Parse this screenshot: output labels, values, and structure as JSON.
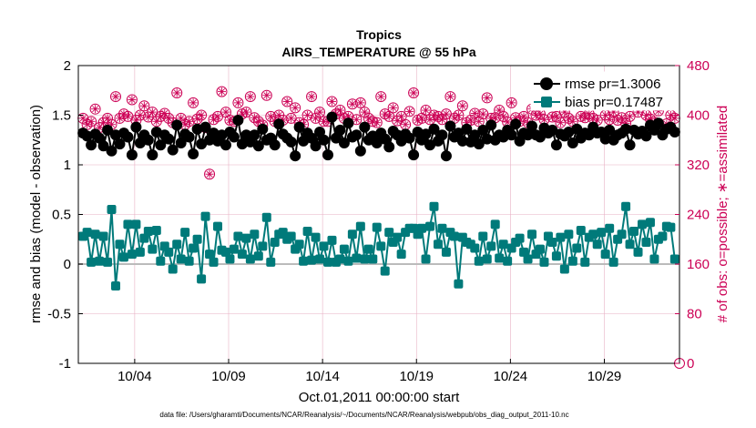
{
  "chart_data": {
    "type": "line",
    "title": "Tropics",
    "subtitle": "AIRS_TEMPERATURE @ 55 hPa",
    "xlabel": "Oct.01,2011 00:00:00 start",
    "ylabel": "rmse and bias (model - observation)",
    "y2label": "# of obs: o=possible; ∗=assimilated",
    "footnote": "data file: /Users/gharamti/Documents/NCAR/Reanalysis/~/Documents/NCAR/Reanalysis/webpub/obs_diag_output_2011-10.nc",
    "xlim": [
      1,
      33
    ],
    "ylim": [
      -1,
      2
    ],
    "y2lim": [
      0,
      480
    ],
    "x_ticks": [
      4,
      9,
      14,
      19,
      24,
      29
    ],
    "x_tick_labels": [
      "10/04",
      "10/09",
      "10/14",
      "10/19",
      "10/24",
      "10/29"
    ],
    "y_ticks": [
      "-1",
      "-0.5",
      "0",
      "0.5",
      "1",
      "1.5",
      "2"
    ],
    "y_tick_values": [
      -1,
      -0.5,
      0,
      0.5,
      1,
      1.5,
      2
    ],
    "y2_ticks": [
      "0",
      "80",
      "160",
      "240",
      "320",
      "400",
      "480"
    ],
    "y2_tick_values": [
      0,
      80,
      160,
      240,
      320,
      400,
      480
    ],
    "grid": true,
    "zero_line": 0,
    "legend_location": "top-right",
    "colors": {
      "rmse": "#000000",
      "bias": "#007a7a",
      "obs": "#cc0055",
      "grid": "#e8b0c4",
      "zero": "#bbbbbb"
    },
    "series": [
      {
        "name": "rmse",
        "legend": "rmse pr=1.3006",
        "values": [
          1.32,
          1.29,
          1.2,
          1.31,
          1.27,
          1.19,
          1.35,
          1.14,
          1.3,
          1.21,
          1.32,
          1.28,
          1.1,
          1.38,
          1.22,
          1.3,
          1.25,
          1.1,
          1.33,
          1.2,
          1.3,
          1.26,
          1.15,
          1.4,
          1.22,
          1.31,
          1.28,
          1.11,
          1.36,
          1.21,
          1.38,
          1.25,
          1.32,
          1.24,
          1.3,
          1.2,
          1.33,
          1.28,
          1.45,
          1.21,
          1.3,
          1.23,
          1.3,
          1.19,
          1.36,
          1.25,
          1.27,
          1.2,
          1.41,
          1.31,
          1.27,
          1.23,
          1.09,
          1.38,
          1.24,
          1.32,
          1.27,
          1.19,
          1.33,
          1.25,
          1.1,
          1.48,
          1.27,
          1.35,
          1.22,
          1.42,
          1.28,
          1.3,
          1.14,
          1.38,
          1.25,
          1.29,
          1.22,
          1.32,
          1.26,
          1.18,
          1.34,
          1.3,
          1.24,
          1.31,
          1.27,
          1.1,
          1.33,
          1.25,
          1.31,
          1.2,
          1.36,
          1.24,
          1.3,
          1.09,
          1.39,
          1.28,
          1.32,
          1.24,
          1.36,
          1.23,
          1.3,
          1.21,
          1.35,
          1.26,
          1.4,
          1.25,
          1.3,
          1.28,
          1.35,
          1.3,
          1.41,
          1.24,
          1.32,
          1.3,
          1.39,
          1.3,
          1.28,
          1.37,
          1.32,
          1.35,
          1.2,
          1.31,
          1.29,
          1.33,
          1.22,
          1.36,
          1.27,
          1.32,
          1.3,
          1.38,
          1.32,
          1.33,
          1.26,
          1.35,
          1.25,
          1.3,
          1.32,
          1.36,
          1.2,
          1.35,
          1.31,
          1.34,
          1.29,
          1.4,
          1.35,
          1.42,
          1.3,
          1.36,
          1.38,
          1.33
        ]
      },
      {
        "name": "bias",
        "legend": "bias pr=0.17487",
        "values": [
          0.28,
          0.32,
          0.02,
          0.3,
          0.03,
          0.28,
          0.02,
          0.55,
          -0.22,
          0.2,
          0.07,
          0.4,
          0.1,
          0.4,
          0.12,
          0.26,
          0.33,
          0.15,
          0.34,
          0.03,
          0.18,
          0.12,
          -0.05,
          0.2,
          0.05,
          0.32,
          0.03,
          0.16,
          0.25,
          -0.15,
          0.48,
          0.1,
          0.02,
          0.38,
          0.14,
          0.12,
          0.05,
          0.15,
          0.28,
          0.1,
          0.26,
          0.05,
          0.3,
          0.08,
          0.18,
          0.47,
          0.02,
          0.22,
          0.3,
          0.32,
          0.25,
          0.28,
          0.15,
          0.2,
          0.03,
          0.33,
          0.04,
          0.27,
          0.05,
          0.18,
          0.02,
          0.24,
          0.02,
          0.05,
          0.15,
          0.03,
          0.3,
          0.06,
          0.38,
          0.05,
          0.15,
          0.05,
          0.37,
          0.18,
          -0.07,
          0.32,
          0.22,
          0.27,
          0.1,
          0.32,
          0.36,
          0.36,
          0.3,
          0.36,
          0.05,
          0.38,
          0.58,
          0.2,
          0.36,
          0.12,
          0.32,
          0.28,
          -0.2,
          0.27,
          0.22,
          0.2,
          0.16,
          0.03,
          0.28,
          0.05,
          0.18,
          0.4,
          0.06,
          0.2,
          0.03,
          0.16,
          0.22,
          0.26,
          0.12,
          0.05,
          0.3,
          0.1,
          0.15,
          0.02,
          0.28,
          0.22,
          0.08,
          0.27,
          -0.05,
          0.3,
          0.03,
          0.16,
          0.34,
          0.02,
          0.27,
          0.3,
          0.2,
          0.32,
          0.1,
          0.36,
          0.02,
          0.25,
          0.3,
          0.58,
          0.2,
          0.33,
          0.12,
          0.4,
          0.22,
          0.42,
          0.05,
          0.25,
          0.28,
          0.38,
          0.37,
          0.05
        ]
      },
      {
        "name": "obs_possible",
        "legend": "",
        "values": [
          395,
          385,
          390,
          410,
          380,
          388,
          395,
          385,
          430,
          395,
          402,
          398,
          425,
          392,
          400,
          415,
          397,
          405,
          390,
          398,
          403,
          395,
          388,
          436,
          395,
          385,
          390,
          420,
          394,
          400,
          380,
          305,
          393,
          398,
          438,
          405,
          392,
          390,
          420,
          402,
          405,
          430,
          396,
          390,
          384,
          432,
          398,
          390,
          400,
          392,
          422,
          395,
          412,
          388,
          385,
          400,
          430,
          395,
          405,
          390,
          390,
          422,
          402,
          408,
          395,
          398,
          418,
          393,
          420,
          405,
          395,
          390,
          388,
          430,
          402,
          398,
          412,
          391,
          398,
          385,
          406,
          436,
          392,
          395,
          408,
          393,
          400,
          398,
          393,
          402,
          430,
          395,
          400,
          415,
          388,
          392,
          403,
          390,
          402,
          428,
          395,
          396,
          408,
          398,
          389,
          420,
          396,
          390,
          398,
          388,
          410,
          400,
          402,
          393,
          418,
          397,
          398,
          388,
          405,
          395,
          390,
          435,
          398,
          396,
          402,
          395,
          392,
          418,
          400,
          393,
          405,
          392,
          396,
          387,
          398,
          428,
          405,
          418,
          400,
          394,
          389,
          407,
          420,
          386,
          400,
          395
        ]
      },
      {
        "name": "obs_assimilated",
        "legend": "",
        "values": [
          395,
          385,
          390,
          410,
          380,
          388,
          395,
          385,
          430,
          395,
          402,
          398,
          425,
          392,
          400,
          415,
          397,
          405,
          390,
          398,
          403,
          395,
          388,
          436,
          395,
          385,
          390,
          420,
          394,
          400,
          380,
          305,
          393,
          398,
          438,
          405,
          392,
          390,
          420,
          402,
          405,
          430,
          396,
          390,
          384,
          432,
          398,
          390,
          400,
          392,
          422,
          395,
          412,
          388,
          385,
          400,
          430,
          395,
          405,
          390,
          390,
          422,
          402,
          408,
          395,
          398,
          418,
          393,
          420,
          405,
          395,
          390,
          388,
          430,
          402,
          398,
          412,
          391,
          398,
          385,
          406,
          436,
          392,
          395,
          408,
          393,
          400,
          398,
          393,
          402,
          430,
          395,
          400,
          415,
          388,
          392,
          403,
          390,
          402,
          428,
          395,
          396,
          408,
          398,
          389,
          420,
          396,
          390,
          398,
          388,
          410,
          400,
          402,
          393,
          418,
          397,
          398,
          388,
          405,
          395,
          390,
          435,
          398,
          396,
          402,
          395,
          392,
          418,
          400,
          393,
          405,
          392,
          396,
          387,
          398,
          428,
          405,
          418,
          400,
          394,
          389,
          407,
          420,
          386,
          400,
          395
        ]
      }
    ]
  }
}
